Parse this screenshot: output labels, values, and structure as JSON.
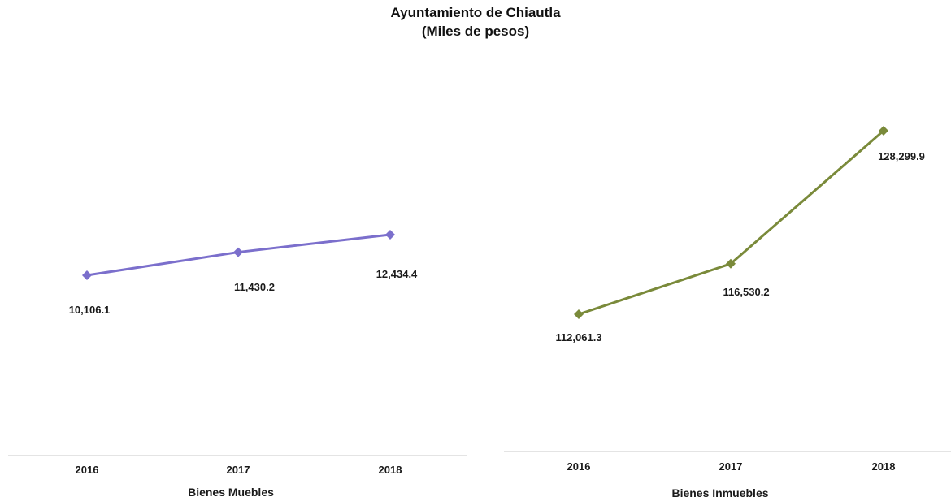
{
  "title": "Ayuntamiento de Chiautla",
  "subtitle": "(Miles de pesos)",
  "chart_data": [
    {
      "type": "line",
      "categories": [
        "2016",
        "2017",
        "2018"
      ],
      "values": [
        10106.1,
        11430.2,
        12434.4
      ],
      "labels": [
        "10,106.1",
        "11,430.2",
        "12,434.4"
      ],
      "xlabel": "Bienes Muebles",
      "ylabel": "",
      "color": "#7b6fcc",
      "grid": false
    },
    {
      "type": "line",
      "categories": [
        "2016",
        "2017",
        "2018"
      ],
      "values": [
        112061.3,
        116530.2,
        128299.9
      ],
      "labels": [
        "112,061.3",
        "116,530.2",
        "128,299.9"
      ],
      "xlabel": "Bienes Inmuebles",
      "ylabel": "",
      "color": "#7a8a3a",
      "grid": false
    }
  ]
}
